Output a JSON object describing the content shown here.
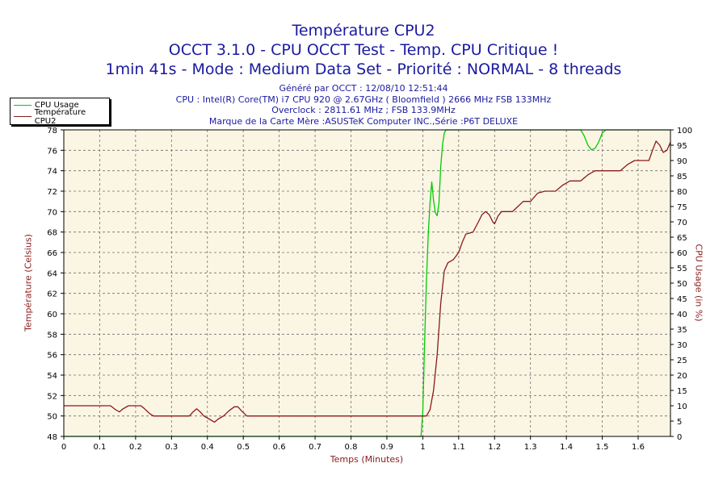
{
  "chart_data": {
    "type": "line",
    "title": "Température CPU2",
    "subtitle_lines": [
      "OCCT 3.1.0 - CPU OCCT Test - Temp. CPU Critique !",
      "1min 41s - Mode : Medium Data Set - Priorité : NORMAL - 8 threads"
    ],
    "info_lines": [
      "Généré par OCCT : 12/08/10 12:51:44",
      "CPU : Intel(R) Core(TM) i7 CPU 920 @ 2.67GHz ( Bloomfield ) 2666 MHz FSB 133MHz",
      "Overclock : 2811.61 MHz ; FSB 133.9MHz",
      "Marque de la Carte Mère :ASUSTeK Computer INC.,Série :P6T DELUXE"
    ],
    "xlabel": "Temps (Minutes)",
    "ylabel_left": "Température (Celsius)",
    "ylabel_right": "CPU Usage (in %)",
    "xlim": [
      0,
      1.69
    ],
    "ylim_left": [
      48,
      78
    ],
    "ylim_right": [
      0,
      100
    ],
    "x_ticks": [
      "0",
      "0.1",
      "0.2",
      "0.3",
      "0.4",
      "0.5",
      "0.6",
      "0.7",
      "0.8",
      "0.9",
      "1",
      "1.1",
      "1.2",
      "1.3",
      "1.4",
      "1.5",
      "1.6"
    ],
    "y_ticks_left": [
      "48",
      "50",
      "52",
      "54",
      "56",
      "58",
      "60",
      "62",
      "64",
      "66",
      "68",
      "70",
      "72",
      "74",
      "76",
      "78"
    ],
    "y_ticks_right": [
      "0",
      "5",
      "10",
      "15",
      "20",
      "25",
      "30",
      "35",
      "40",
      "45",
      "50",
      "55",
      "60",
      "65",
      "70",
      "75",
      "80",
      "85",
      "90",
      "95",
      "100"
    ],
    "grid": true,
    "legend_position": "top-left",
    "series": [
      {
        "name": "CPU Usage",
        "axis": "right",
        "color": "#00cc00",
        "points": [
          [
            0,
            0
          ],
          [
            0.98,
            0
          ],
          [
            0.995,
            0
          ],
          [
            1.0,
            8
          ],
          [
            1.005,
            30
          ],
          [
            1.01,
            50
          ],
          [
            1.015,
            65
          ],
          [
            1.02,
            76
          ],
          [
            1.025,
            83
          ],
          [
            1.03,
            77
          ],
          [
            1.035,
            73
          ],
          [
            1.04,
            72
          ],
          [
            1.045,
            76
          ],
          [
            1.05,
            88
          ],
          [
            1.055,
            95
          ],
          [
            1.06,
            99
          ],
          [
            1.065,
            100
          ],
          [
            1.44,
            100
          ],
          [
            1.45,
            98
          ],
          [
            1.46,
            95
          ],
          [
            1.47,
            93.5
          ],
          [
            1.48,
            94
          ],
          [
            1.49,
            96
          ],
          [
            1.5,
            99
          ],
          [
            1.51,
            100
          ],
          [
            1.69,
            100
          ]
        ]
      },
      {
        "name": "Température CPU2",
        "axis": "left",
        "color": "#8b1a1a",
        "points": [
          [
            0,
            51
          ],
          [
            0.13,
            51
          ],
          [
            0.145,
            50.6
          ],
          [
            0.155,
            50.4
          ],
          [
            0.165,
            50.7
          ],
          [
            0.18,
            51
          ],
          [
            0.215,
            51
          ],
          [
            0.225,
            50.7
          ],
          [
            0.24,
            50.2
          ],
          [
            0.25,
            50
          ],
          [
            0.35,
            50
          ],
          [
            0.36,
            50.4
          ],
          [
            0.37,
            50.7
          ],
          [
            0.38,
            50.4
          ],
          [
            0.39,
            50
          ],
          [
            0.405,
            49.7
          ],
          [
            0.42,
            49.4
          ],
          [
            0.43,
            49.7
          ],
          [
            0.445,
            50
          ],
          [
            0.46,
            50.5
          ],
          [
            0.475,
            50.9
          ],
          [
            0.485,
            50.9
          ],
          [
            0.495,
            50.5
          ],
          [
            0.51,
            50
          ],
          [
            0.99,
            50
          ],
          [
            1.01,
            50
          ],
          [
            1.02,
            50.6
          ],
          [
            1.03,
            52.5
          ],
          [
            1.04,
            56
          ],
          [
            1.05,
            61
          ],
          [
            1.06,
            64.2
          ],
          [
            1.07,
            65
          ],
          [
            1.085,
            65.3
          ],
          [
            1.1,
            66
          ],
          [
            1.11,
            67
          ],
          [
            1.12,
            67.8
          ],
          [
            1.14,
            68
          ],
          [
            1.155,
            69
          ],
          [
            1.165,
            69.7
          ],
          [
            1.175,
            70
          ],
          [
            1.185,
            69.7
          ],
          [
            1.195,
            69
          ],
          [
            1.2,
            68.8
          ],
          [
            1.21,
            69.6
          ],
          [
            1.22,
            70
          ],
          [
            1.25,
            70
          ],
          [
            1.265,
            70.5
          ],
          [
            1.28,
            71
          ],
          [
            1.3,
            71
          ],
          [
            1.32,
            71.8
          ],
          [
            1.34,
            72
          ],
          [
            1.37,
            72
          ],
          [
            1.39,
            72.6
          ],
          [
            1.41,
            73
          ],
          [
            1.44,
            73
          ],
          [
            1.46,
            73.6
          ],
          [
            1.48,
            74
          ],
          [
            1.55,
            74
          ],
          [
            1.57,
            74.6
          ],
          [
            1.59,
            75
          ],
          [
            1.63,
            75
          ],
          [
            1.64,
            76
          ],
          [
            1.65,
            76.9
          ],
          [
            1.66,
            76.5
          ],
          [
            1.67,
            75.8
          ],
          [
            1.68,
            76
          ],
          [
            1.69,
            76.8
          ]
        ]
      }
    ]
  }
}
